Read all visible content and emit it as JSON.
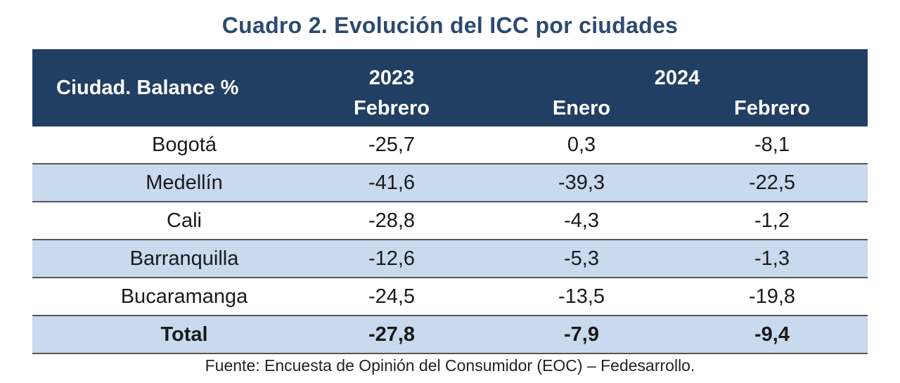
{
  "title": "Cuadro 2. Evolución del ICC por ciudades",
  "colors": {
    "header_bg": "#213e63",
    "alt_row": "#c9d9ee",
    "title": "#2b4a70"
  },
  "table": {
    "corner_header": "Ciudad. Balance %",
    "years": [
      "2023",
      "2024"
    ],
    "months": [
      "Febrero",
      "Enero",
      "Febrero"
    ],
    "rows": [
      {
        "city": "Bogotá",
        "values": [
          "-25,7",
          "0,3",
          "-8,1"
        ]
      },
      {
        "city": "Medellín",
        "values": [
          "-41,6",
          "-39,3",
          "-22,5"
        ]
      },
      {
        "city": "Cali",
        "values": [
          "-28,8",
          "-4,3",
          "-1,2"
        ]
      },
      {
        "city": "Barranquilla",
        "values": [
          "-12,6",
          "-5,3",
          "-1,3"
        ]
      },
      {
        "city": "Bucaramanga",
        "values": [
          "-24,5",
          "-13,5",
          "-19,8"
        ]
      },
      {
        "city": "Total",
        "values": [
          "-27,8",
          "-7,9",
          "-9,4"
        ]
      }
    ]
  },
  "source": "Fuente: Encuesta de Opinión del Consumidor (EOC) – Fedesarrollo."
}
